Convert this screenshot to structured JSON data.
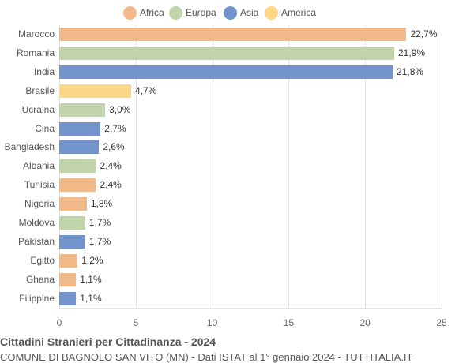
{
  "chart_data": {
    "type": "bar",
    "orientation": "horizontal",
    "title": "Cittadini Stranieri per Cittadinanza - 2024",
    "subtitle": "COMUNE DI BAGNOLO SAN VITO (MN) - Dati ISTAT al 1° gennaio 2024 - TUTTITALIA.IT",
    "xlabel": "",
    "ylabel": "",
    "xlim": [
      0,
      25
    ],
    "xticks": [
      "0",
      "5",
      "10",
      "15",
      "20",
      "25"
    ],
    "grid": true,
    "legend_position": "top",
    "legend": [
      {
        "name": "Africa",
        "color": "#f2b98a"
      },
      {
        "name": "Europa",
        "color": "#c1d4ab"
      },
      {
        "name": "Asia",
        "color": "#7293cb"
      },
      {
        "name": "America",
        "color": "#fdd688"
      }
    ],
    "categories": [
      "Marocco",
      "Romania",
      "India",
      "Brasile",
      "Ucraina",
      "Cina",
      "Bangladesh",
      "Albania",
      "Tunisia",
      "Nigeria",
      "Moldova",
      "Pakistan",
      "Egitto",
      "Ghana",
      "Filippine"
    ],
    "values": [
      22.7,
      21.9,
      21.8,
      4.7,
      3.0,
      2.7,
      2.6,
      2.4,
      2.4,
      1.8,
      1.7,
      1.7,
      1.2,
      1.1,
      1.1
    ],
    "value_labels": [
      "22,7%",
      "21,9%",
      "21,8%",
      "4,7%",
      "3,0%",
      "2,7%",
      "2,6%",
      "2,4%",
      "2,4%",
      "1,8%",
      "1,7%",
      "1,7%",
      "1,2%",
      "1,1%",
      "1,1%"
    ],
    "groups": [
      "Africa",
      "Europa",
      "Asia",
      "America",
      "Europa",
      "Asia",
      "Asia",
      "Europa",
      "Africa",
      "Africa",
      "Europa",
      "Asia",
      "Africa",
      "Africa",
      "Asia"
    ]
  }
}
